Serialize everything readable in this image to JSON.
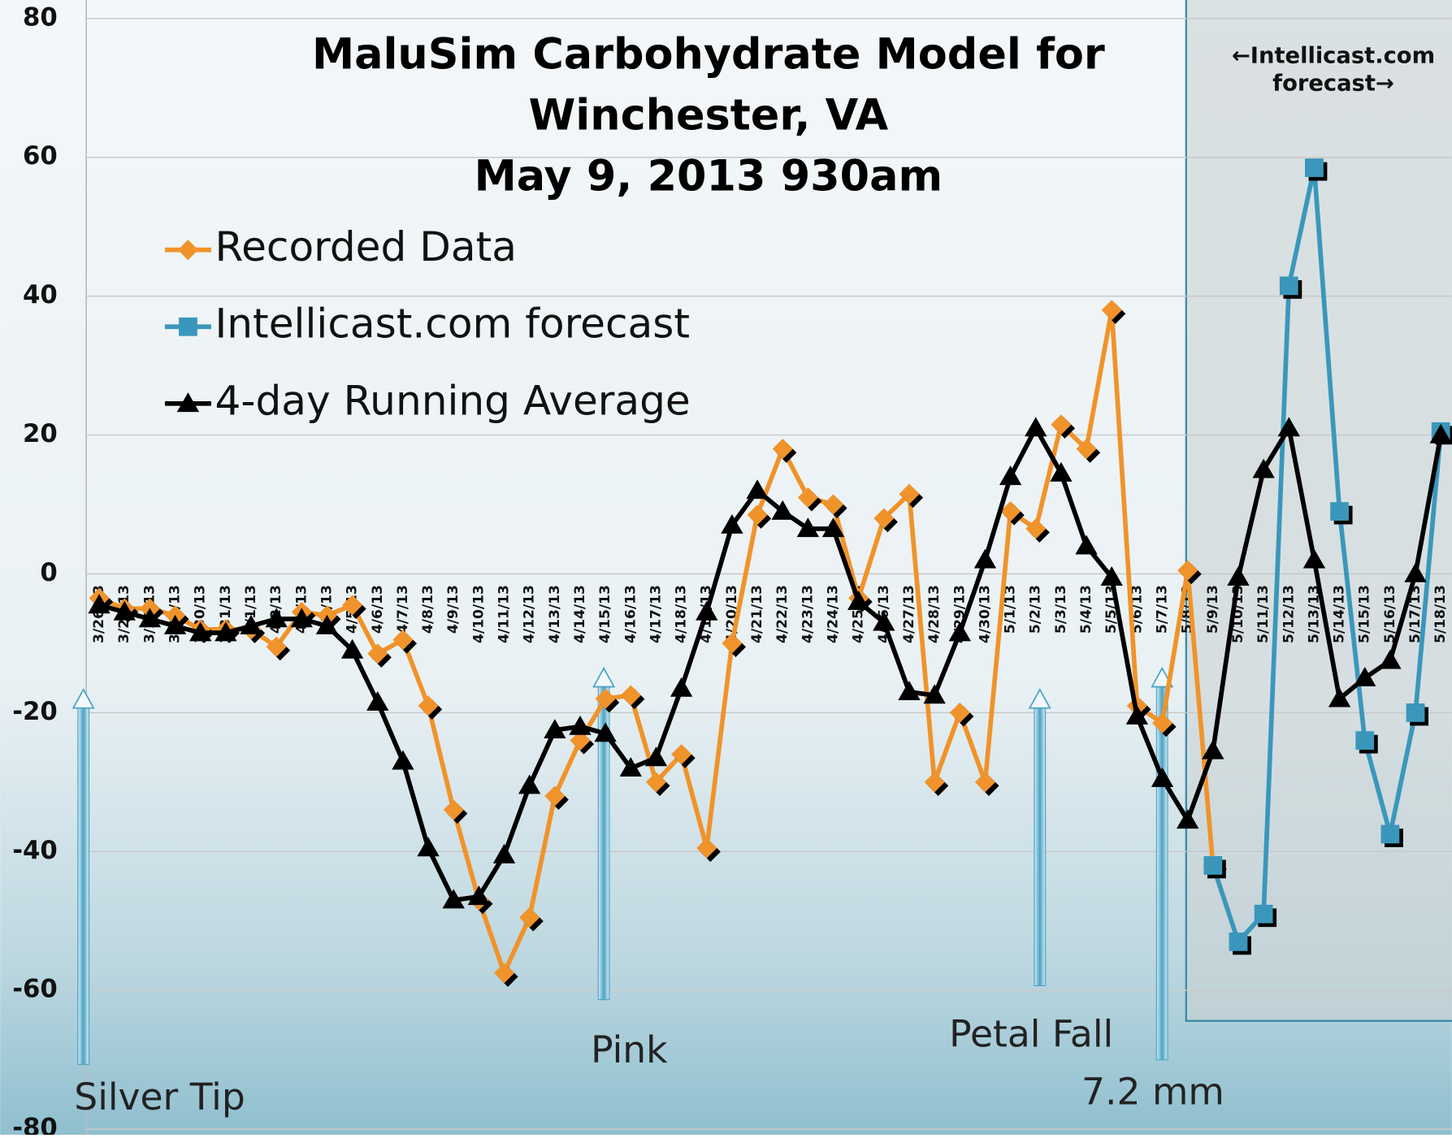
{
  "chart_data": {
    "type": "line",
    "title": "MaluSim Carbohydrate Model for Winchester, VA",
    "subtitle": "May 9, 2013 930am",
    "categories": [
      "3/26/13",
      "3/27/13",
      "3/28/13",
      "3/29/13",
      "3/30/13",
      "3/31/13",
      "4/1/13",
      "4/2/13",
      "4/3/13",
      "4/4/13",
      "4/5/13",
      "4/6/13",
      "4/7/13",
      "4/8/13",
      "4/9/13",
      "4/10/13",
      "4/11/13",
      "4/12/13",
      "4/13/13",
      "4/14/13",
      "4/15/13",
      "4/16/13",
      "4/17/13",
      "4/18/13",
      "4/19/13",
      "4/20/13",
      "4/21/13",
      "4/22/13",
      "4/23/13",
      "4/24/13",
      "4/25/13",
      "4/26/13",
      "4/27/13",
      "4/28/13",
      "4/29/13",
      "4/30/13",
      "5/1/13",
      "5/2/13",
      "5/3/13",
      "5/4/13",
      "5/5/13",
      "5/6/13",
      "5/7/13",
      "5/8/13",
      "5/9/13",
      "5/10/13",
      "5/11/13",
      "5/12/13",
      "5/13/13",
      "5/14/13",
      "5/15/13",
      "5/16/13",
      "5/17/13",
      "5/18/13"
    ],
    "series": [
      {
        "name": "Recorded Data",
        "color": "#f0932a",
        "marker": "diamond",
        "values": [
          -3.5,
          -5,
          -5,
          -6,
          -8,
          -8,
          -8,
          -10.5,
          -5.5,
          -6,
          -4.5,
          -11.5,
          -9.5,
          -19,
          -34,
          -47,
          -57.5,
          -49.5,
          -32,
          -24,
          -18,
          -17.5,
          -30,
          -26,
          -39.5,
          -10,
          8.5,
          18,
          11,
          10,
          -3.5,
          8,
          11.5,
          -30,
          -20,
          -30,
          9,
          6.5,
          21.5,
          18,
          38,
          -19,
          -21.5,
          0.5,
          -42,
          null,
          null,
          null,
          null,
          null,
          null,
          null,
          null,
          null
        ]
      },
      {
        "name": "Intellicast.com forecast",
        "color": "#3a97bb",
        "marker": "square",
        "values": [
          null,
          null,
          null,
          null,
          null,
          null,
          null,
          null,
          null,
          null,
          null,
          null,
          null,
          null,
          null,
          null,
          null,
          null,
          null,
          null,
          null,
          null,
          null,
          null,
          null,
          null,
          null,
          null,
          null,
          null,
          null,
          null,
          null,
          null,
          null,
          null,
          null,
          null,
          null,
          null,
          null,
          null,
          null,
          null,
          -42,
          -53,
          -49,
          41.5,
          58.5,
          9,
          -24,
          -37.5,
          -20,
          20.5
        ]
      },
      {
        "name": "4-day Running Average",
        "color": "#000000",
        "marker": "triangle",
        "values": [
          -4.5,
          -5.5,
          -6.5,
          -7.5,
          -8.5,
          -8.5,
          -7.5,
          -6.5,
          -6.5,
          -7.5,
          -11,
          -18.5,
          -27,
          -39.5,
          -47,
          -46.5,
          -40.5,
          -30.5,
          -22.5,
          -22,
          -23,
          -28,
          -26.5,
          -16.5,
          -5.5,
          7,
          12,
          9,
          6.5,
          6.5,
          -4,
          -7,
          -17,
          -17.5,
          -8.5,
          2,
          14,
          21,
          14.5,
          4,
          -0.5,
          -20.5,
          -29.5,
          -35.5,
          -25.5,
          -0.5,
          15,
          21,
          2,
          -18,
          -15,
          -12.5,
          0,
          20
        ]
      }
    ],
    "ylim": [
      -80,
      80
    ],
    "yticks": [
      -80,
      -60,
      -40,
      -20,
      0,
      20,
      40,
      60,
      80
    ],
    "grid": true,
    "annotations": [
      "Silver Tip",
      "Pink",
      "Petal Fall",
      "7.2 mm",
      "←Intellicast.com forecast→"
    ]
  }
}
